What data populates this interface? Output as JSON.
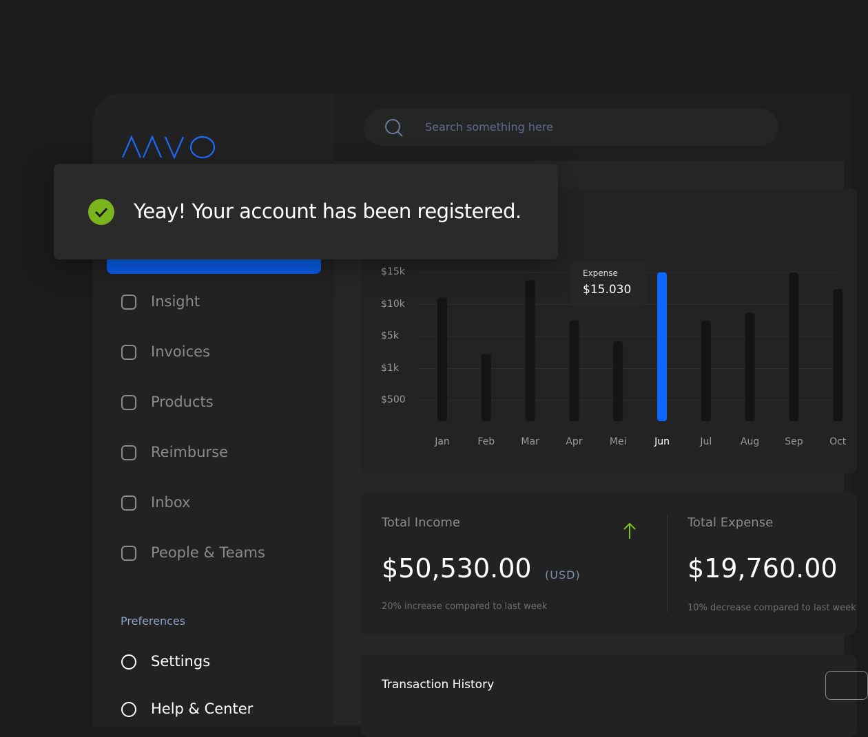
{
  "search": {
    "placeholder": "Search something here"
  },
  "toast": {
    "message": "Yeay! Your account has been registered."
  },
  "nav": {
    "items": [
      "Insight",
      "Invoices",
      "Products",
      "Reimburse",
      "Inbox",
      "People & Teams"
    ],
    "section": "Preferences",
    "preferences": [
      "Settings",
      "Help & Center"
    ]
  },
  "chart_data": {
    "type": "bar",
    "categories": [
      "Jan",
      "Feb",
      "Mar",
      "Apr",
      "Mei",
      "Jun",
      "Jul",
      "Aug",
      "Sep",
      "Oct"
    ],
    "values": [
      11100,
      2800,
      13800,
      7500,
      4400,
      15030,
      7500,
      8700,
      15000,
      12400
    ],
    "colors": [
      "#141414",
      "#141414",
      "#141414",
      "#141414",
      "#141414",
      "#0a66ff",
      "#141414",
      "#141414",
      "#141414",
      "#141414"
    ],
    "ylim": [
      0,
      15000
    ],
    "yticks": [
      {
        "value": 500,
        "label": "$500"
      },
      {
        "value": 1000,
        "label": "$1k"
      },
      {
        "value": 5000,
        "label": "$5k"
      },
      {
        "value": 10000,
        "label": "$10k"
      },
      {
        "value": 15000,
        "label": "$15k"
      }
    ],
    "grid": true,
    "tooltip": {
      "name": "Expense",
      "label": "$15.030"
    }
  },
  "stats": [
    {
      "title": "Total Income",
      "amount": "$50,530.00",
      "currency": "(USD)",
      "note": "20% increase compared to last week"
    },
    {
      "title": "Total Expense",
      "amount": "$19,760.00",
      "note": "10% decrease compared to last week"
    }
  ],
  "transactions": {
    "title": "Transaction History"
  }
}
